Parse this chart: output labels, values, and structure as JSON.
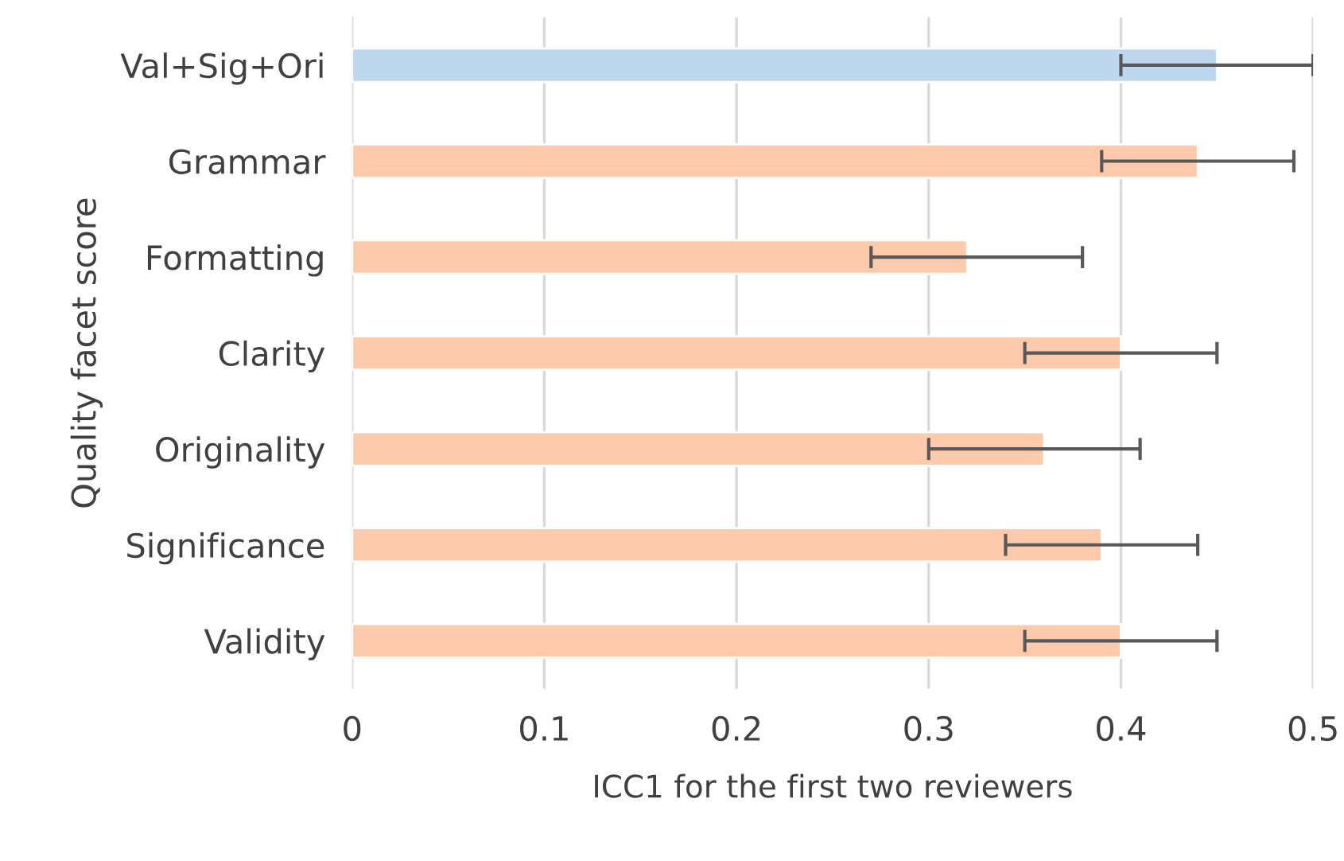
{
  "chart_data": {
    "type": "bar",
    "orientation": "horizontal",
    "xlabel": "ICC1 for the first two reviewers",
    "ylabel": "Quality facet score",
    "categories": [
      "Val+Sig+Ori",
      "Grammar",
      "Formatting",
      "Clarity",
      "Originality",
      "Significance",
      "Validity"
    ],
    "values": [
      0.45,
      0.44,
      0.32,
      0.4,
      0.36,
      0.39,
      0.4
    ],
    "colors": [
      "#bdd7ee",
      "#fdcbac",
      "#fdcbac",
      "#fdcbac",
      "#fdcbac",
      "#fdcbac",
      "#fdcbac"
    ],
    "errors": [
      [
        0.4,
        0.5
      ],
      [
        0.39,
        0.49
      ],
      [
        0.27,
        0.38
      ],
      [
        0.35,
        0.45
      ],
      [
        0.3,
        0.41
      ],
      [
        0.34,
        0.44
      ],
      [
        0.35,
        0.45
      ]
    ],
    "xlim": [
      0,
      0.5
    ],
    "xticks": [
      0,
      0.1,
      0.2,
      0.3,
      0.4,
      0.5
    ],
    "grid": "x",
    "legend": false
  }
}
